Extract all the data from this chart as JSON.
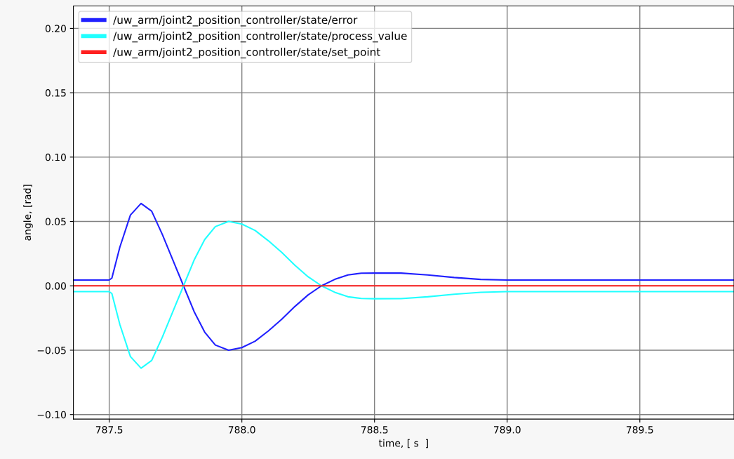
{
  "chart_data": {
    "type": "line",
    "xlabel": "time, [ s  ]",
    "ylabel": "angle, [rad]",
    "xlim": [
      787.365,
      789.855
    ],
    "xticks": [
      {
        "value": 787.5,
        "label": "787.5"
      },
      {
        "value": 788.0,
        "label": "788.0"
      },
      {
        "value": 788.5,
        "label": "788.5"
      },
      {
        "value": 789.0,
        "label": "789.0"
      },
      {
        "value": 789.5,
        "label": "789.5"
      }
    ],
    "ylim": [
      -0.1035,
      0.2174
    ],
    "yticks": [
      {
        "value": -0.1,
        "label": "−0.10"
      },
      {
        "value": -0.05,
        "label": "−0.05"
      },
      {
        "value": 0,
        "label": "0.00"
      },
      {
        "value": 0.05,
        "label": "0.05"
      },
      {
        "value": 0.1,
        "label": "0.10"
      },
      {
        "value": 0.15,
        "label": "0.15"
      },
      {
        "value": 0.2,
        "label": "0.20"
      }
    ],
    "grid": true,
    "legend": "top left",
    "marker": "none",
    "line_style": "solid",
    "x": [
      787.365,
      787.5,
      787.51,
      787.54,
      787.58,
      787.62,
      787.66,
      787.7,
      787.74,
      787.78,
      787.82,
      787.86,
      787.9,
      787.95,
      788.0,
      788.05,
      788.1,
      788.15,
      788.2,
      788.25,
      788.3,
      788.35,
      788.4,
      788.45,
      788.5,
      788.6,
      788.7,
      788.8,
      788.9,
      789.0,
      789.855
    ],
    "series": [
      {
        "name": "/uw_arm/joint2_position_controller/state/error",
        "color": "#2020ff",
        "values": [
          0.0045,
          0.0045,
          0.006,
          0.03,
          0.055,
          0.064,
          0.058,
          0.04,
          0.02,
          0.0,
          -0.02,
          -0.036,
          -0.046,
          -0.05,
          -0.048,
          -0.043,
          -0.035,
          -0.026,
          -0.016,
          -0.007,
          0.0,
          0.005,
          0.0085,
          0.0098,
          0.01,
          0.0099,
          0.0085,
          0.0065,
          0.005,
          0.0045,
          0.0045
        ]
      },
      {
        "name": "/uw_arm/joint2_position_controller/state/process_value",
        "color": "#20ffff",
        "values": [
          -0.0045,
          -0.0045,
          -0.006,
          -0.03,
          -0.055,
          -0.064,
          -0.058,
          -0.04,
          -0.02,
          0.0,
          0.02,
          0.036,
          0.046,
          0.05,
          0.048,
          0.043,
          0.035,
          0.026,
          0.016,
          0.007,
          0.0,
          -0.005,
          -0.0085,
          -0.0098,
          -0.01,
          -0.0099,
          -0.0085,
          -0.0065,
          -0.005,
          -0.0045,
          -0.0045
        ]
      },
      {
        "name": "/uw_arm/joint2_position_controller/state/set_point",
        "color": "#ff2020",
        "values": [
          0,
          0,
          0,
          0,
          0,
          0,
          0,
          0,
          0,
          0,
          0,
          0,
          0,
          0,
          0,
          0,
          0,
          0,
          0,
          0,
          0,
          0,
          0,
          0,
          0,
          0,
          0,
          0,
          0,
          0,
          0
        ]
      }
    ]
  }
}
